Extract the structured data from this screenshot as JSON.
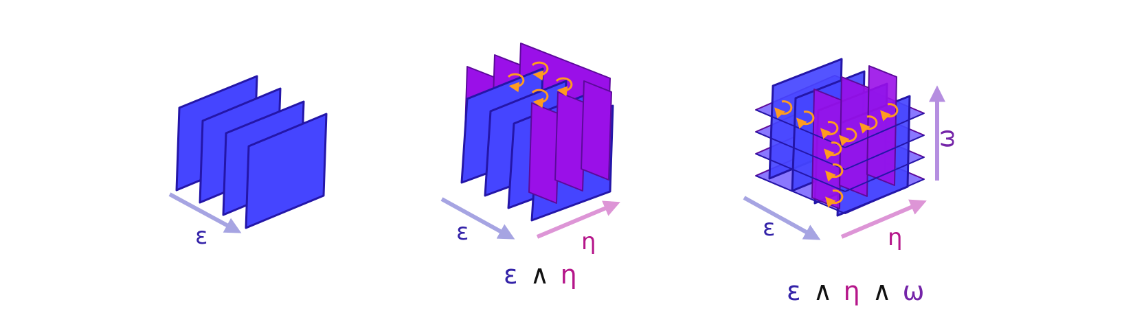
{
  "colors": {
    "blue_fill": "#4545ff",
    "blue_edge": "#2416a8",
    "purple_fill": "#9a10e8",
    "purple_edge": "#5c0a9a",
    "lavender_fill": "#8a78ff",
    "arrow_blue": "#a6a4e2",
    "arrow_pink": "#dd95d6",
    "arrow_violet": "#b58ee0",
    "epsilon_color": "#3322a8",
    "eta_color": "#b5168a",
    "omega_color": "#7424a8",
    "wedge_color": "#111111",
    "circulation_color": "#ff9b1f"
  },
  "panels": [
    {
      "name": "one-form",
      "labels": {
        "epsilon": "ε"
      }
    },
    {
      "name": "two-form",
      "labels": {
        "epsilon": "ε",
        "eta": "η"
      },
      "caption": {
        "epsilon": "ε",
        "wedge": "∧",
        "eta": "η"
      }
    },
    {
      "name": "three-form",
      "labels": {
        "epsilon": "ε",
        "eta": "η",
        "omega": "ω"
      },
      "caption": {
        "epsilon": "ε",
        "wedge1": "∧",
        "eta": "η",
        "wedge2": "∧",
        "omega": "ω"
      }
    }
  ]
}
